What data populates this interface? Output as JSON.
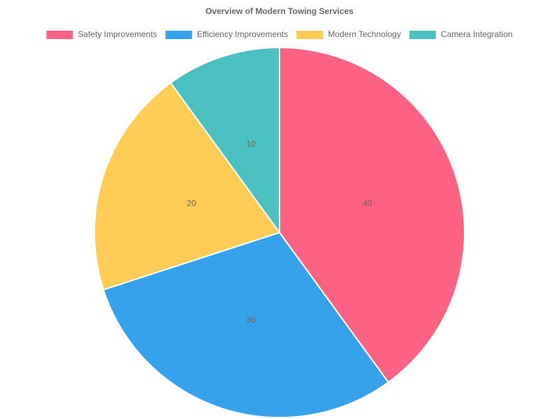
{
  "chart_data": {
    "type": "pie",
    "title": "Overview of Modern Towing Services",
    "categories": [
      "Safety Improvements",
      "Efficiency Improvements",
      "Modern Technology",
      "Camera Integration"
    ],
    "values": [
      40,
      30,
      20,
      10
    ],
    "colors": [
      "#ff6384",
      "#36a2eb",
      "#ffcd56",
      "#4bc0c0"
    ],
    "legend": "top"
  }
}
